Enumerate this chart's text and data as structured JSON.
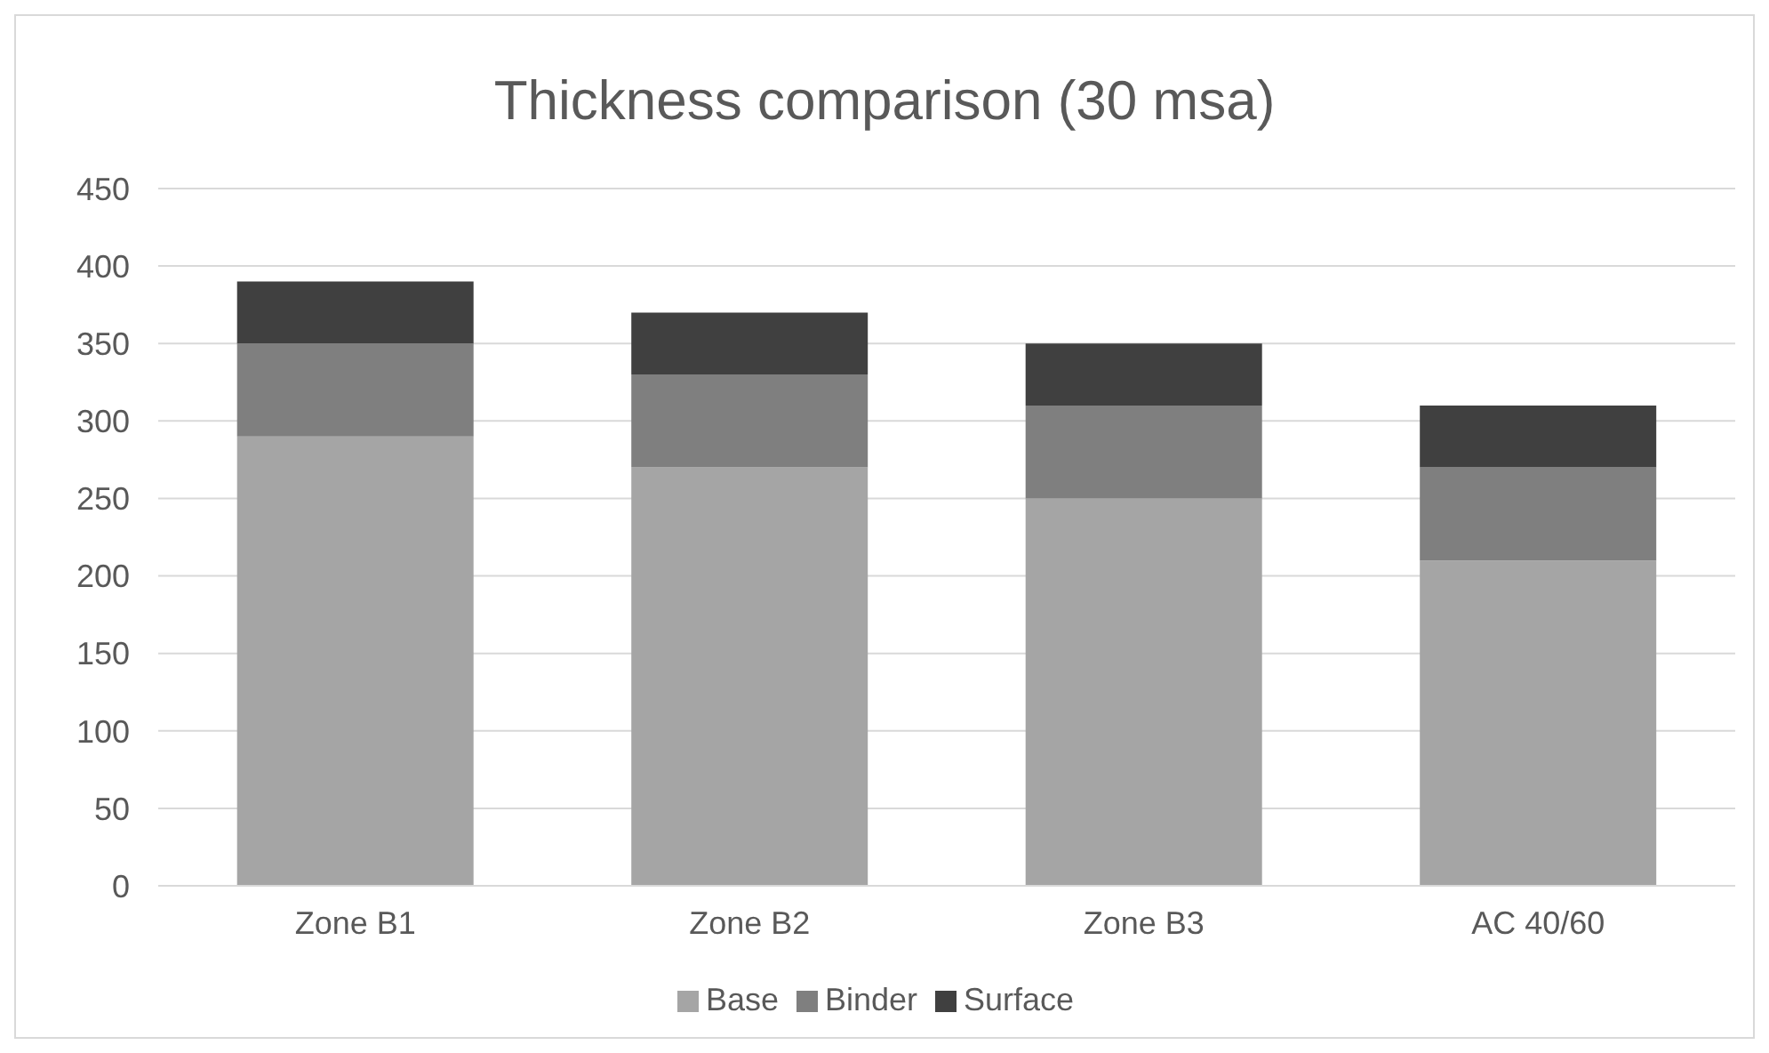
{
  "chart_data": {
    "type": "bar",
    "title": "Thickness comparison (30 msa)",
    "categories": [
      "Zone B1",
      "Zone B2",
      "Zone B3",
      "AC 40/60"
    ],
    "series": [
      {
        "name": "Base",
        "color": "#a5a5a5",
        "values": [
          290,
          270,
          250,
          210
        ]
      },
      {
        "name": "Binder",
        "color": "#7f7f7f",
        "values": [
          60,
          60,
          60,
          60
        ]
      },
      {
        "name": "Surface",
        "color": "#404040",
        "values": [
          40,
          40,
          40,
          40
        ]
      }
    ],
    "stacked": true,
    "ylim": [
      0,
      450
    ],
    "yticks": [
      0,
      50,
      100,
      150,
      200,
      250,
      300,
      350,
      400,
      450
    ],
    "grid": "y",
    "legend": "bottom"
  }
}
